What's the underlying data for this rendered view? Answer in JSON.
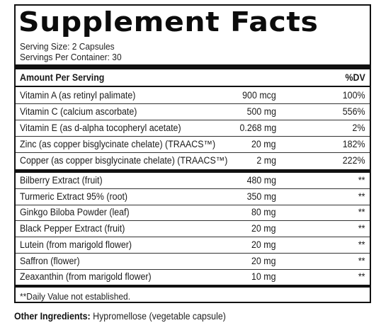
{
  "title": "Supplement Facts",
  "serving_size": "Serving Size: 2 Capsules",
  "servings_per_container": "Servings Per Container: 30",
  "header": {
    "amount_label": "Amount Per Serving",
    "dv_label": "%DV"
  },
  "vitamins": [
    {
      "name": "Vitamin A (as retinyl palimate)",
      "amount": "900 mcg",
      "dv": "100%"
    },
    {
      "name": "Vitamin C (calcium ascorbate)",
      "amount": "500 mg",
      "dv": "556%"
    },
    {
      "name": "Vitamin E (as d-alpha tocopheryl acetate)",
      "amount": "0.268 mg",
      "dv": "2%"
    },
    {
      "name": "Zinc (as copper bisglycinate chelate) (TRAACS™)",
      "amount": "20 mg",
      "dv": "182%"
    },
    {
      "name": "Copper (as copper bisglycinate chelate) (TRAACS™)",
      "amount": "2 mg",
      "dv": "222%"
    }
  ],
  "extracts": [
    {
      "name": "Bilberry Extract (fruit)",
      "amount": "480 mg",
      "dv": "**"
    },
    {
      "name": "Turmeric Extract 95% (root)",
      "amount": "350 mg",
      "dv": "**"
    },
    {
      "name": "Ginkgo Biloba Powder (leaf)",
      "amount": "80 mg",
      "dv": "**"
    },
    {
      "name": "Black Pepper Extract (fruit)",
      "amount": "20 mg",
      "dv": "**"
    },
    {
      "name": "Lutein (from marigold flower)",
      "amount": "20 mg",
      "dv": "**"
    },
    {
      "name": "Saffron (flower)",
      "amount": "20 mg",
      "dv": "**"
    },
    {
      "name": "Zeaxanthin (from marigold flower)",
      "amount": "10 mg",
      "dv": "**"
    }
  ],
  "footnote": "**Daily Value not established.",
  "other_ingredients": {
    "label": "Other Ingredients:",
    "value": " Hypromellose (vegetable capsule)"
  }
}
